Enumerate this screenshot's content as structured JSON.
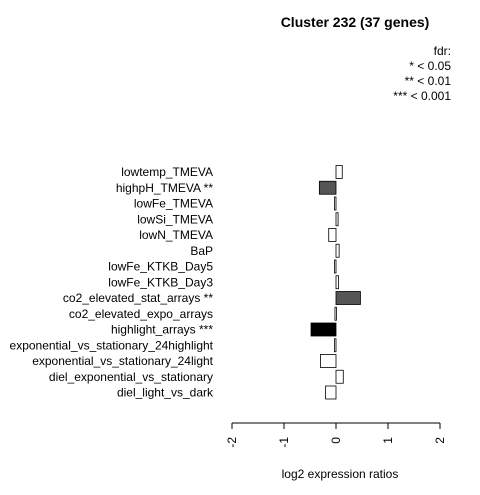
{
  "chart_data": {
    "type": "bar",
    "orientation": "horizontal",
    "title": "Cluster 232 (37 genes)",
    "xlabel": "log2 expression ratios",
    "ylabel": "",
    "xlim": [
      -2,
      2
    ],
    "x_ticks": [
      "-2",
      "-1",
      "0",
      "1",
      "2"
    ],
    "x_tick_values": [
      -2,
      -1,
      0,
      1,
      2
    ],
    "legend": {
      "title": "fdr:",
      "entries": [
        "* < 0.05",
        "** < 0.01",
        "*** < 0.001"
      ],
      "placement": "top-right"
    },
    "categories": [
      "lowtemp_TMEVA",
      "highpH_TMEVA **",
      "lowFe_TMEVA",
      "lowSi_TMEVA",
      "lowN_TMEVA",
      "BaP",
      "lowFe_KTKB_Day5",
      "lowFe_KTKB_Day3",
      "co2_elevated_stat_arrays **",
      "co2_elevated_expo_arrays",
      "highlight_arrays ***",
      "exponential_vs_stationary_24highlight",
      "exponential_vs_stationary_24light",
      "diel_exponential_vs_stationary",
      "diel_light_vs_dark"
    ],
    "values": [
      0.12,
      -0.32,
      -0.03,
      0.04,
      -0.14,
      0.06,
      -0.03,
      0.05,
      0.47,
      -0.02,
      -0.48,
      -0.03,
      -0.3,
      0.14,
      -0.2
    ],
    "fills": [
      "#ffffff",
      "#555555",
      "#ffffff",
      "#ffffff",
      "#ffffff",
      "#ffffff",
      "#ffffff",
      "#ffffff",
      "#555555",
      "#ffffff",
      "#000000",
      "#ffffff",
      "#ffffff",
      "#ffffff",
      "#ffffff"
    ],
    "grid": false
  }
}
